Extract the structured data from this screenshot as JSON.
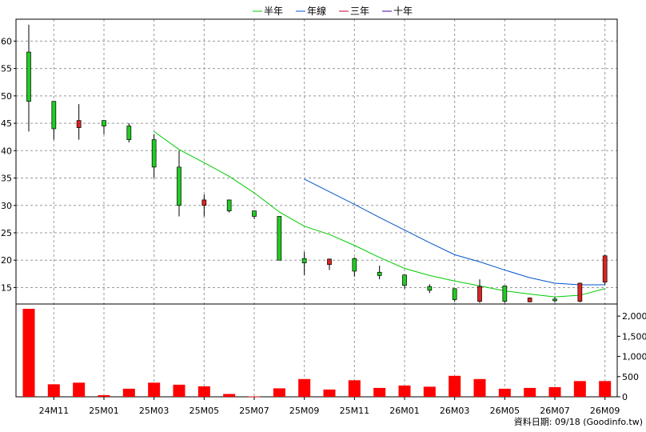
{
  "chart_data": {
    "type": "candlestick",
    "legend": {
      "placement": "top-center",
      "items": [
        {
          "label": "半年",
          "color": "#00cc00"
        },
        {
          "label": "年線",
          "color": "#0055cc"
        },
        {
          "label": "三年",
          "color": "#cc0033"
        },
        {
          "label": "十年",
          "color": "#4400aa"
        }
      ]
    },
    "price_axis": {
      "ylim": [
        12,
        64
      ],
      "ticks": [
        15,
        20,
        25,
        30,
        35,
        40,
        45,
        50,
        55,
        60
      ],
      "side": "left",
      "grid": true
    },
    "volume_axis": {
      "ylim": [
        0,
        2300
      ],
      "ticks": [
        0,
        500,
        1000,
        1500,
        2000
      ],
      "tick_labels": [
        "0",
        "500",
        "1,000",
        "1,500",
        "2,000"
      ],
      "side": "right"
    },
    "x_tick_labels": [
      {
        "index": 1,
        "label": "24M11"
      },
      {
        "index": 3,
        "label": "25M01"
      },
      {
        "index": 5,
        "label": "25M03"
      },
      {
        "index": 7,
        "label": "25M05"
      },
      {
        "index": 9,
        "label": "25M07"
      },
      {
        "index": 11,
        "label": "25M09"
      },
      {
        "index": 13,
        "label": "25M11"
      },
      {
        "index": 15,
        "label": "26M01"
      },
      {
        "index": 17,
        "label": "26M03"
      },
      {
        "index": 19,
        "label": "26M05"
      },
      {
        "index": 21,
        "label": "26M07"
      },
      {
        "index": 23,
        "label": "26M09"
      }
    ],
    "candles": [
      {
        "open": 49,
        "close": 58,
        "high": 63,
        "low": 43.5,
        "up": true
      },
      {
        "open": 44,
        "close": 49,
        "high": 49,
        "low": 42,
        "up": true
      },
      {
        "open": 45.5,
        "close": 44.2,
        "high": 48.5,
        "low": 42,
        "up": false
      },
      {
        "open": 44.5,
        "close": 45.5,
        "high": 45.5,
        "low": 43,
        "up": true
      },
      {
        "open": 42,
        "close": 44.5,
        "high": 45,
        "low": 41.5,
        "up": true
      },
      {
        "open": 37,
        "close": 42,
        "high": 43,
        "low": 35,
        "up": true
      },
      {
        "open": 30,
        "close": 37,
        "high": 40,
        "low": 28,
        "up": true
      },
      {
        "open": 31,
        "close": 30,
        "high": 32,
        "low": 28,
        "up": false
      },
      {
        "open": 29,
        "close": 31,
        "high": 31,
        "low": 28.7,
        "up": true
      },
      {
        "open": 28,
        "close": 29,
        "high": 29,
        "low": 27.5,
        "up": true
      },
      {
        "open": 20,
        "close": 28,
        "high": 28,
        "low": 20,
        "up": true
      },
      {
        "open": 19.5,
        "close": 20.3,
        "high": 21.5,
        "low": 17.3,
        "up": true
      },
      {
        "open": 20.2,
        "close": 19.2,
        "high": 20.3,
        "low": 18.2,
        "up": false
      },
      {
        "open": 18,
        "close": 20.3,
        "high": 20.5,
        "low": 17,
        "up": true
      },
      {
        "open": 17.2,
        "close": 17.8,
        "high": 19,
        "low": 16.5,
        "up": true
      },
      {
        "open": 15.4,
        "close": 17.3,
        "high": 17.3,
        "low": 14.8,
        "up": true
      },
      {
        "open": 14.5,
        "close": 15.2,
        "high": 15.6,
        "low": 14,
        "up": true
      },
      {
        "open": 12.8,
        "close": 14.8,
        "high": 14.8,
        "low": 12.4,
        "up": true
      },
      {
        "open": 15.2,
        "close": 12.5,
        "high": 16.5,
        "low": 12.2,
        "up": false
      },
      {
        "open": 12.5,
        "close": 15.3,
        "high": 15.3,
        "low": 12.2,
        "up": true
      },
      {
        "open": 13.1,
        "close": 12.4,
        "high": 13.2,
        "low": 12.3,
        "up": false
      },
      {
        "open": 12.6,
        "close": 12.9,
        "high": 13.3,
        "low": 12.3,
        "up": true
      },
      {
        "open": 15.8,
        "close": 12.5,
        "high": 15.9,
        "low": 12.3,
        "up": false
      },
      {
        "open": 20.8,
        "close": 16,
        "high": 21,
        "low": 15.5,
        "up": false
      }
    ],
    "volumes": [
      2180,
      310,
      350,
      40,
      200,
      350,
      300,
      260,
      70,
      10,
      210,
      440,
      180,
      410,
      220,
      280,
      250,
      520,
      440,
      200,
      220,
      240,
      390,
      390
    ],
    "ma_series": [
      {
        "name": "半年",
        "color": "#00cc00",
        "points": [
          [
            5,
            43.5
          ],
          [
            6,
            40.2
          ],
          [
            7,
            37.8
          ],
          [
            8,
            35.3
          ],
          [
            9,
            32.3
          ],
          [
            10,
            28.8
          ],
          [
            11,
            26.2
          ],
          [
            12,
            24.7
          ],
          [
            13,
            22.7
          ],
          [
            14,
            20.5
          ],
          [
            15,
            18.5
          ],
          [
            16,
            17.2
          ],
          [
            17,
            16.2
          ],
          [
            18,
            15.3
          ],
          [
            19,
            14.4
          ],
          [
            20,
            13.8
          ],
          [
            21,
            13.3
          ],
          [
            22,
            13.6
          ],
          [
            23,
            14.8
          ]
        ]
      },
      {
        "name": "年線",
        "color": "#0055cc",
        "points": [
          [
            11,
            34.8
          ],
          [
            12,
            32.5
          ],
          [
            13,
            30.2
          ],
          [
            14,
            27.8
          ],
          [
            15,
            25.5
          ],
          [
            16,
            23.2
          ],
          [
            17,
            21
          ],
          [
            18,
            19.7
          ],
          [
            19,
            18.2
          ],
          [
            20,
            16.8
          ],
          [
            21,
            15.8
          ],
          [
            22,
            15.5
          ],
          [
            23,
            15.5
          ]
        ]
      }
    ]
  },
  "footer": {
    "source_text": "資料日期: 09/18  (Goodinfo.tw)"
  }
}
